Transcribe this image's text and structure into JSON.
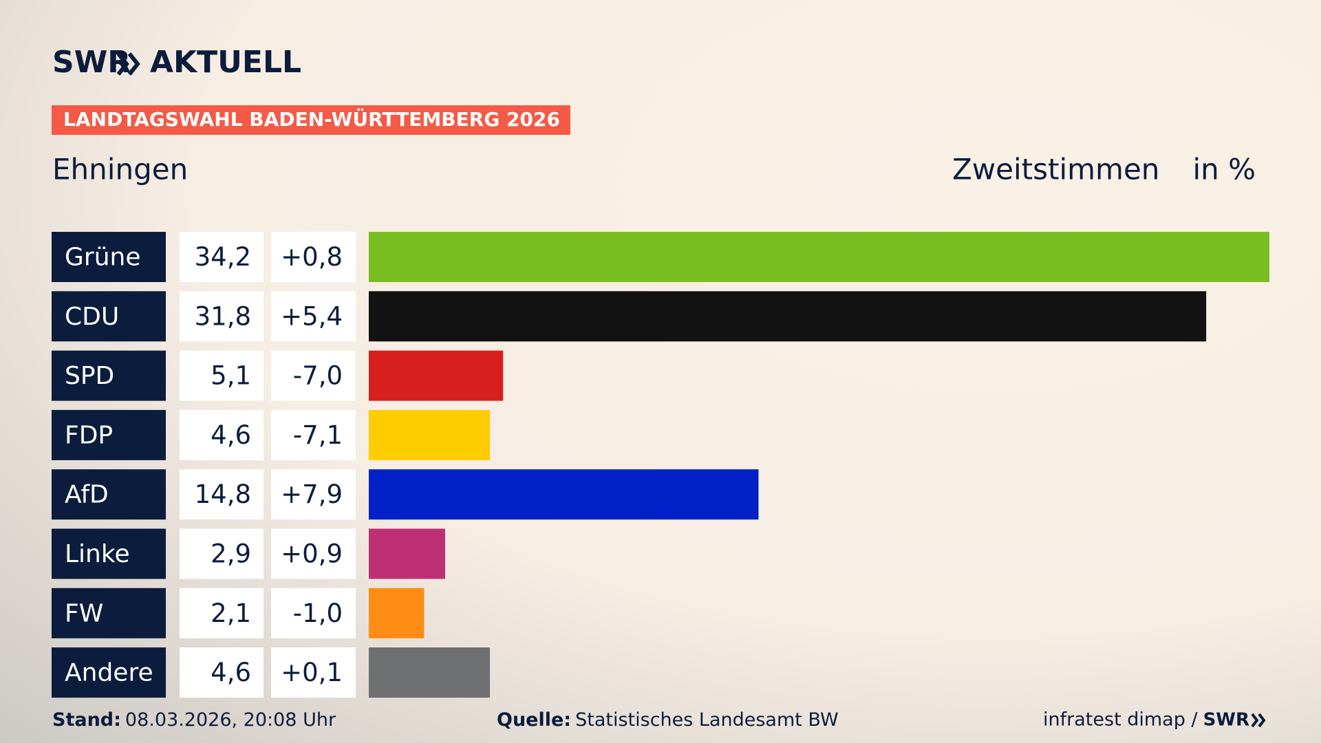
{
  "chart_data": {
    "type": "bar",
    "brand": "SWR",
    "brand_name": "AKTUELL",
    "title": "LANDTAGSWAHL BADEN-WÜRTTEMBERG 2026",
    "subtitle": "Ehningen",
    "value_axis_label": "Zweitstimmen",
    "unit": "in %",
    "categories": [
      "Grüne",
      "CDU",
      "SPD",
      "FDP",
      "AfD",
      "Linke",
      "FW",
      "Andere"
    ],
    "values": [
      34.2,
      31.8,
      5.1,
      4.6,
      14.8,
      2.9,
      2.1,
      4.6
    ],
    "value_labels": [
      "34,2",
      "31,8",
      "5,1",
      "4,6",
      "14,8",
      "2,9",
      "2,1",
      "4,6"
    ],
    "changes": [
      0.8,
      5.4,
      -7.0,
      -7.1,
      7.9,
      0.9,
      -1.0,
      0.1
    ],
    "change_labels": [
      "+0,8",
      "+5,4",
      "-7,0",
      "-7,1",
      "+7,9",
      "+0,9",
      "-1,0",
      "+0,1"
    ],
    "colors": [
      "#78be20",
      "#121212",
      "#d71f1d",
      "#ffcc00",
      "#0021c8",
      "#be3075",
      "#ff8c14",
      "#6f7072"
    ],
    "footer": {
      "date_label": "Stand:",
      "date": "08.03.2026, 20:08 Uhr",
      "source_label": "Quelle:",
      "source": "Statistisches Landesamt BW",
      "credit": "infratest dimap /",
      "credit_brand": "SWR"
    }
  }
}
